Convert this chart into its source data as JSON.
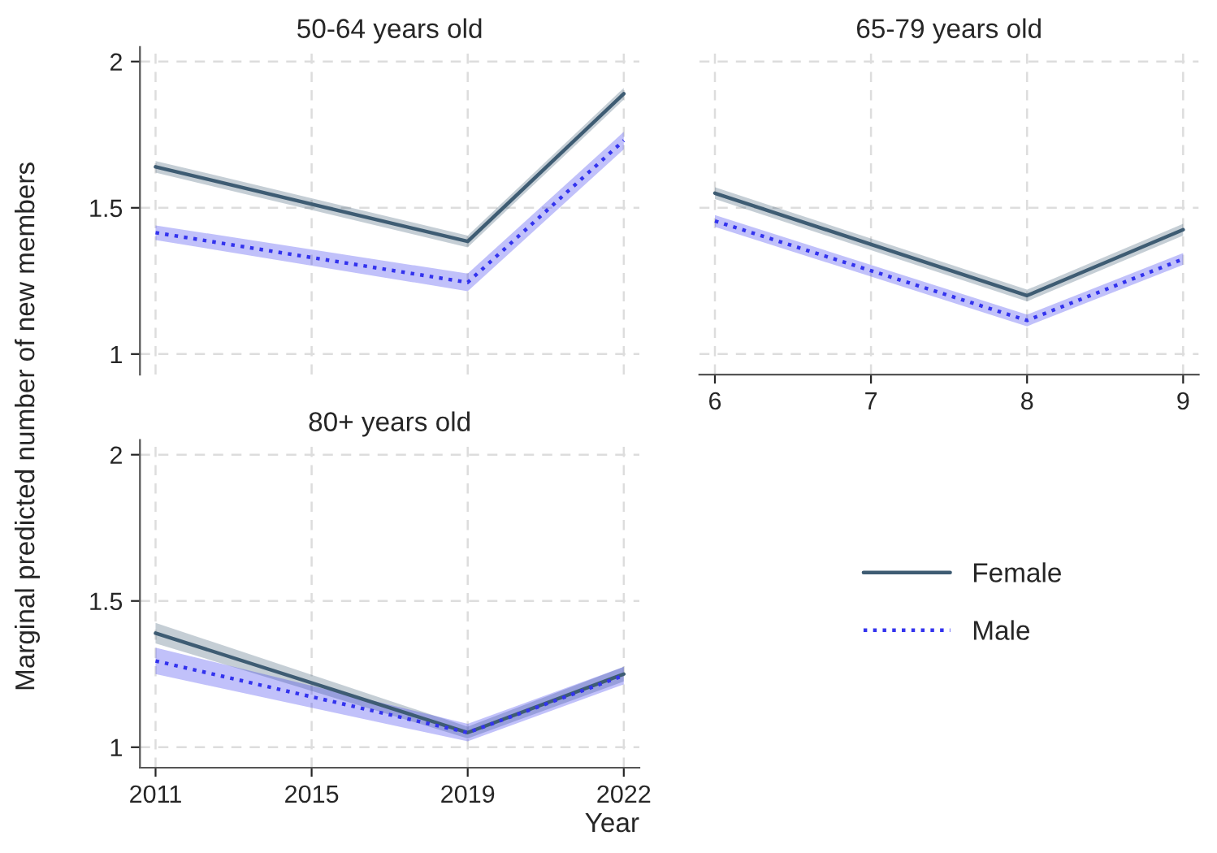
{
  "chart_data": [
    {
      "type": "line",
      "title": "50-64 years old",
      "categories": [
        "2011",
        "2015",
        "2019",
        "2022"
      ],
      "ylim": [
        0.93,
        2.05
      ],
      "yticks": [
        1,
        1.5,
        2
      ],
      "tick_labels": "y",
      "grid": true,
      "series": [
        {
          "color": "#3e5c73",
          "line_style": "solid",
          "values": [
            1.64,
            null,
            1.385,
            1.89
          ],
          "lower": [
            1.62,
            null,
            1.365,
            1.87
          ],
          "upper": [
            1.66,
            null,
            1.405,
            1.91
          ]
        },
        {
          "color": "#3333ee",
          "line_style": "dotted",
          "values": [
            1.415,
            null,
            1.245,
            1.73
          ],
          "lower": [
            1.39,
            null,
            1.215,
            1.7
          ],
          "upper": [
            1.44,
            null,
            1.275,
            1.76
          ]
        }
      ]
    },
    {
      "type": "line",
      "title": "65-79 years old",
      "xlim": [
        5.9,
        9.1
      ],
      "xticks": [
        6,
        7,
        8,
        9
      ],
      "ylim": [
        0.93,
        2.05
      ],
      "yticks": [
        1,
        1.5,
        2
      ],
      "tick_labels": "x",
      "grid": true,
      "series": [
        {
          "color": "#3e5c73",
          "line_style": "solid",
          "x": [
            6,
            8,
            9
          ],
          "values": [
            1.55,
            1.2,
            1.425
          ],
          "lower": [
            1.53,
            1.18,
            1.405
          ],
          "upper": [
            1.57,
            1.22,
            1.445
          ]
        },
        {
          "color": "#3333ee",
          "line_style": "dotted",
          "x": [
            6,
            8,
            9
          ],
          "values": [
            1.455,
            1.115,
            1.325
          ],
          "lower": [
            1.435,
            1.095,
            1.305
          ],
          "upper": [
            1.475,
            1.135,
            1.345
          ]
        }
      ]
    },
    {
      "type": "line",
      "title": "80+ years old",
      "xlabel": "Year",
      "ylabel": "Marginal predicted number of new members",
      "categories": [
        "2011",
        "2015",
        "2019",
        "2022"
      ],
      "ylim": [
        0.93,
        2.05
      ],
      "yticks": [
        1,
        1.5,
        2
      ],
      "grid": true,
      "legend": "right",
      "series": [
        {
          "name": "Female",
          "color": "#3e5c73",
          "line_style": "solid",
          "values": [
            1.39,
            null,
            1.05,
            1.25
          ],
          "lower": [
            1.355,
            null,
            1.03,
            1.225
          ],
          "upper": [
            1.425,
            null,
            1.07,
            1.275
          ]
        },
        {
          "name": "Male",
          "color": "#3333ee",
          "line_style": "dotted",
          "values": [
            1.295,
            null,
            1.05,
            1.245
          ],
          "lower": [
            1.25,
            null,
            1.02,
            1.215
          ],
          "upper": [
            1.34,
            null,
            1.08,
            1.275
          ]
        }
      ]
    }
  ]
}
